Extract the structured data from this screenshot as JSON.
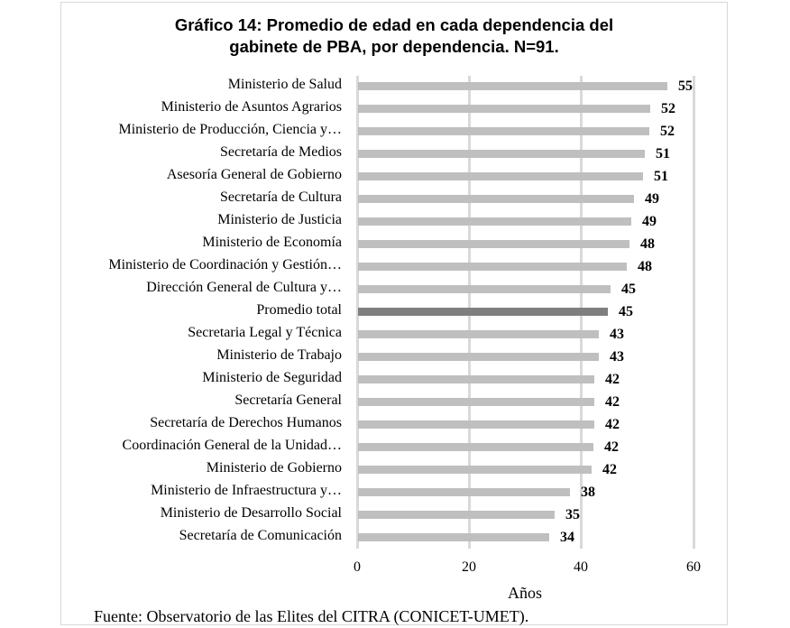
{
  "chart_data": {
    "type": "bar",
    "orientation": "horizontal",
    "title": "Gráfico 14: Promedio de edad en cada dependencia del gabinete de PBA, por dependencia. N=91.",
    "title_lines": [
      "Gráfico 14: Promedio de edad en cada dependencia del",
      "gabinete de PBA, por dependencia. N=91."
    ],
    "xlabel": "Años",
    "ylabel": "",
    "xlim": [
      0,
      60
    ],
    "x_ticks": [
      "0",
      "20",
      "40",
      "60"
    ],
    "grid": true,
    "legend": null,
    "data_labels": true,
    "categories": [
      "Ministerio de Salud",
      "Ministerio de Asuntos Agrarios",
      "Ministerio de Producción, Ciencia y…",
      "Secretaría de Medios",
      "Asesoría General de Gobierno",
      "Secretaría de Cultura",
      "Ministerio de Justicia",
      "Ministerio de Economía",
      "Ministerio de Coordinación y Gestión…",
      "Dirección General de Cultura y…",
      "Promedio total",
      "Secretaria Legal y Técnica",
      "Ministerio de Trabajo",
      "Ministerio de Seguridad",
      "Secretaría General",
      "Secretaría de Derechos Humanos",
      "Coordinación General de la Unidad…",
      "Ministerio de Gobierno",
      "Ministerio de Infraestructura y…",
      "Ministerio de Desarrollo Social",
      "Secretaría de Comunicación"
    ],
    "values": [
      55,
      52,
      52,
      51,
      51,
      49,
      49,
      48,
      48,
      45,
      45,
      43,
      43,
      42,
      42,
      42,
      42,
      42,
      38,
      35,
      34
    ],
    "bar_values_precise": [
      55.2,
      52.1,
      51.9,
      51.2,
      50.8,
      49.2,
      48.8,
      48.4,
      47.9,
      45.0,
      44.6,
      42.9,
      42.9,
      42.2,
      42.1,
      42.1,
      42.0,
      41.7,
      37.8,
      35.1,
      34.1
    ],
    "colors": {
      "bar": "#bfbfbf",
      "highlight_bar": "#7f7f7f",
      "grid": "#d9d9d9",
      "frame": "#d9d9d9"
    },
    "highlight_category": "Promedio total",
    "source": "Fuente: Observatorio de las Elites del CITRA  (CONICET-UMET)."
  },
  "labels": {
    "title_line1": "Gráfico 14: Promedio de edad en cada dependencia del",
    "title_line2": "gabinete de PBA, por dependencia. N=91.",
    "xlabel": "Años",
    "ticks": [
      "0",
      "20",
      "40",
      "60"
    ],
    "source": "Fuente: Observatorio de las Elites del CITRA  (CONICET-UMET)."
  }
}
